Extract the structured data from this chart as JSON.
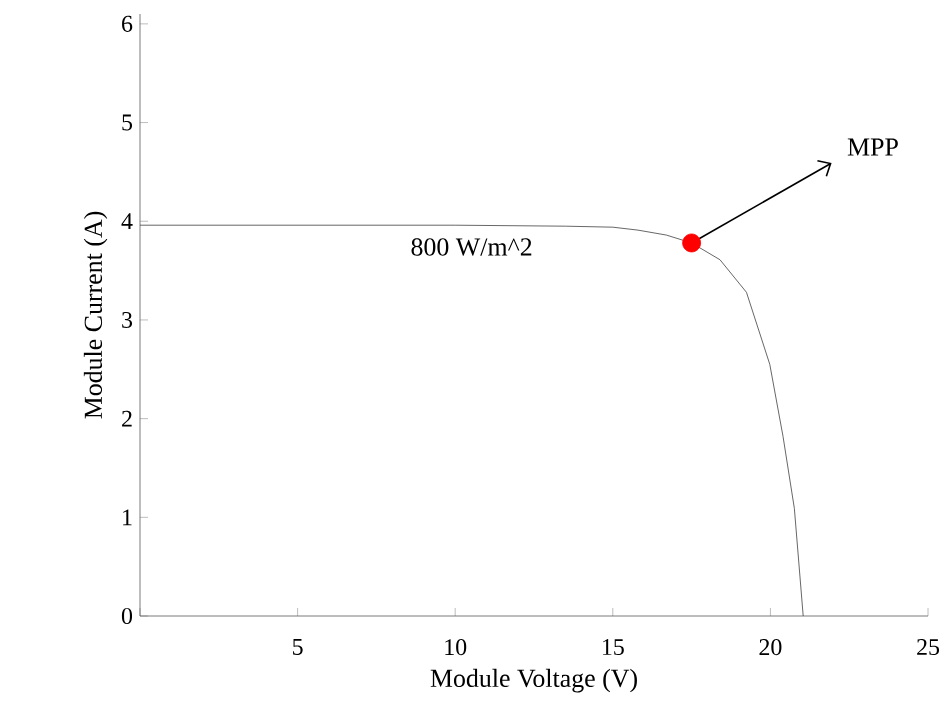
{
  "chart_data": {
    "type": "line",
    "xlabel": "Module Voltage (V)",
    "ylabel": "Module Current (A)",
    "xlim": [
      0,
      25
    ],
    "ylim": [
      0,
      6.1
    ],
    "xticks": [
      {
        "value": 0,
        "label": null
      },
      5,
      10,
      15,
      20,
      25
    ],
    "yticks": [
      0,
      1,
      2,
      3,
      4,
      5,
      6
    ],
    "grid": false,
    "legend": false,
    "series": [
      {
        "name": "800 W/m^2",
        "color": "#404040",
        "marker": "none",
        "x": [
          0,
          5,
          10,
          13.5,
          15,
          15.8,
          16.7,
          17.5,
          18.4,
          19.24,
          19.98,
          20.4,
          20.76,
          21.04
        ],
        "values": [
          3.96,
          3.96,
          3.96,
          3.95,
          3.94,
          3.91,
          3.86,
          3.78,
          3.61,
          3.28,
          2.55,
          1.82,
          1.09,
          0
        ]
      },
      {
        "type": "scatter",
        "color": "#ff0000",
        "marker": "circle",
        "x": [
          17.5
        ],
        "values": [
          3.78
        ]
      }
    ],
    "annotations": [
      {
        "text": "MPP",
        "x": 17.5,
        "y": 3.78
      }
    ]
  }
}
